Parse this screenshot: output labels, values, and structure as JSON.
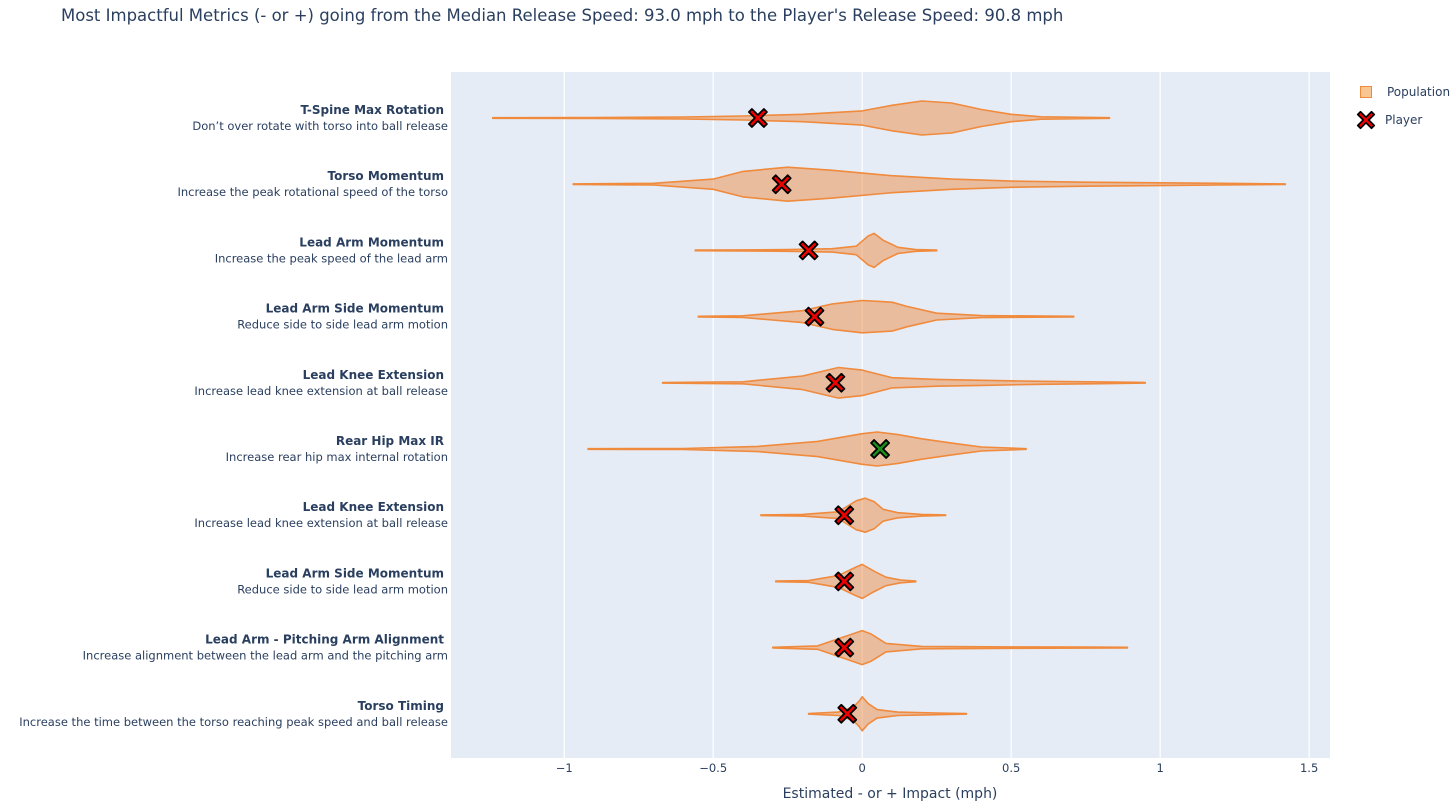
{
  "title": "Most Impactful Metrics (- or +) going from the Median Release Speed: 93.0 mph to the Player's Release Speed: 90.8 mph",
  "legend": {
    "population_label": "Population",
    "player_label": "Player"
  },
  "colors": {
    "plot_bg": "#e5ecf6",
    "violin_fill": "rgba(240,140,70,0.5)",
    "violin_line": "#f08a3c",
    "marker_negative": "#ee0000",
    "marker_positive": "#1a8f1a",
    "marker_outline": "#000000",
    "text": "#2a3f5f"
  },
  "chart_data": {
    "type": "violin",
    "orientation": "horizontal",
    "xlabel": "Estimated - or + Impact (mph)",
    "xlim": [
      -1.38,
      1.57
    ],
    "xticks": [
      -1,
      -0.5,
      0,
      0.5,
      1,
      1.5
    ],
    "xtick_labels": [
      "−1",
      "−0.5",
      "0",
      "0.5",
      "1",
      "1.5"
    ],
    "grid": true,
    "legend_position": "top-right",
    "metrics": [
      {
        "name": "T-Spine Max Rotation",
        "description": "Don’t over rotate with torso into ball release",
        "player": -0.35,
        "min": -1.24,
        "max": 0.83,
        "profile": [
          [
            -1.24,
            0.02
          ],
          [
            -0.9,
            0.03
          ],
          [
            -0.6,
            0.06
          ],
          [
            -0.4,
            0.12
          ],
          [
            -0.2,
            0.22
          ],
          [
            0.0,
            0.42
          ],
          [
            0.1,
            0.75
          ],
          [
            0.2,
            1.0
          ],
          [
            0.3,
            0.88
          ],
          [
            0.4,
            0.5
          ],
          [
            0.5,
            0.22
          ],
          [
            0.6,
            0.07
          ],
          [
            0.83,
            0.02
          ]
        ]
      },
      {
        "name": "Torso Momentum",
        "description": "Increase the peak rotational speed of the torso",
        "player": -0.27,
        "min": -0.97,
        "max": 1.42,
        "profile": [
          [
            -0.97,
            0.02
          ],
          [
            -0.7,
            0.05
          ],
          [
            -0.5,
            0.3
          ],
          [
            -0.4,
            0.75
          ],
          [
            -0.25,
            1.0
          ],
          [
            -0.1,
            0.82
          ],
          [
            0.1,
            0.5
          ],
          [
            0.3,
            0.3
          ],
          [
            0.5,
            0.18
          ],
          [
            0.75,
            0.12
          ],
          [
            1.0,
            0.08
          ],
          [
            1.2,
            0.05
          ],
          [
            1.42,
            0.02
          ]
        ]
      },
      {
        "name": "Lead Arm Momentum",
        "description": "Increase the peak speed of the lead arm",
        "player": -0.18,
        "min": -0.56,
        "max": 0.25,
        "profile": [
          [
            -0.56,
            0.02
          ],
          [
            -0.4,
            0.03
          ],
          [
            -0.25,
            0.05
          ],
          [
            -0.1,
            0.1
          ],
          [
            -0.02,
            0.25
          ],
          [
            0.02,
            0.85
          ],
          [
            0.04,
            1.0
          ],
          [
            0.07,
            0.6
          ],
          [
            0.12,
            0.18
          ],
          [
            0.18,
            0.05
          ],
          [
            0.25,
            0.02
          ]
        ]
      },
      {
        "name": "Lead Arm Side Momentum",
        "description": "Reduce side to side lead arm motion",
        "player": -0.16,
        "min": -0.55,
        "max": 0.71,
        "profile": [
          [
            -0.55,
            0.02
          ],
          [
            -0.4,
            0.05
          ],
          [
            -0.2,
            0.35
          ],
          [
            -0.1,
            0.75
          ],
          [
            0.0,
            0.95
          ],
          [
            0.05,
            0.9
          ],
          [
            0.1,
            0.85
          ],
          [
            0.15,
            0.6
          ],
          [
            0.25,
            0.2
          ],
          [
            0.4,
            0.06
          ],
          [
            0.71,
            0.02
          ]
        ]
      },
      {
        "name": "Lead Knee Extension",
        "description": "Increase lead knee extension at ball release",
        "player": -0.09,
        "min": -0.67,
        "max": 0.95,
        "profile": [
          [
            -0.67,
            0.02
          ],
          [
            -0.4,
            0.06
          ],
          [
            -0.2,
            0.4
          ],
          [
            -0.08,
            0.9
          ],
          [
            0.0,
            0.75
          ],
          [
            0.1,
            0.3
          ],
          [
            0.25,
            0.2
          ],
          [
            0.4,
            0.15
          ],
          [
            0.6,
            0.09
          ],
          [
            0.8,
            0.05
          ],
          [
            0.95,
            0.02
          ]
        ]
      },
      {
        "name": "Rear Hip Max IR",
        "description": "Increase rear hip max internal rotation",
        "player": 0.06,
        "min": -0.92,
        "max": 0.55,
        "profile": [
          [
            -0.92,
            0.02
          ],
          [
            -0.6,
            0.03
          ],
          [
            -0.35,
            0.15
          ],
          [
            -0.15,
            0.45
          ],
          [
            0.0,
            0.9
          ],
          [
            0.05,
            1.0
          ],
          [
            0.12,
            0.85
          ],
          [
            0.2,
            0.6
          ],
          [
            0.3,
            0.35
          ],
          [
            0.4,
            0.12
          ],
          [
            0.55,
            0.02
          ]
        ]
      },
      {
        "name": "Lead Knee Extension",
        "description": "Increase lead knee extension at ball release",
        "player": -0.06,
        "min": -0.34,
        "max": 0.28,
        "profile": [
          [
            -0.34,
            0.02
          ],
          [
            -0.2,
            0.05
          ],
          [
            -0.08,
            0.2
          ],
          [
            -0.02,
            0.85
          ],
          [
            0.01,
            1.0
          ],
          [
            0.04,
            0.8
          ],
          [
            0.07,
            0.35
          ],
          [
            0.12,
            0.15
          ],
          [
            0.2,
            0.05
          ],
          [
            0.28,
            0.02
          ]
        ]
      },
      {
        "name": "Lead Arm Side Momentum",
        "description": "Reduce side to side lead arm motion",
        "player": -0.06,
        "min": -0.29,
        "max": 0.18,
        "profile": [
          [
            -0.29,
            0.02
          ],
          [
            -0.18,
            0.05
          ],
          [
            -0.08,
            0.35
          ],
          [
            -0.02,
            0.85
          ],
          [
            0.0,
            1.0
          ],
          [
            0.04,
            0.6
          ],
          [
            0.08,
            0.25
          ],
          [
            0.13,
            0.08
          ],
          [
            0.18,
            0.02
          ]
        ]
      },
      {
        "name": "Lead Arm - Pitching Arm Alignment",
        "description": "Increase alignment between the lead arm and the pitching arm",
        "player": -0.06,
        "min": -0.3,
        "max": 0.89,
        "profile": [
          [
            -0.3,
            0.02
          ],
          [
            -0.15,
            0.1
          ],
          [
            -0.05,
            0.7
          ],
          [
            0.0,
            1.0
          ],
          [
            0.03,
            0.8
          ],
          [
            0.08,
            0.25
          ],
          [
            0.2,
            0.07
          ],
          [
            0.5,
            0.04
          ],
          [
            0.75,
            0.03
          ],
          [
            0.89,
            0.02
          ]
        ]
      },
      {
        "name": "Torso Timing",
        "description": "Increase the time between the torso reaching peak speed and ball release",
        "player": -0.05,
        "min": -0.18,
        "max": 0.35,
        "profile": [
          [
            -0.18,
            0.02
          ],
          [
            -0.08,
            0.1
          ],
          [
            -0.03,
            0.4
          ],
          [
            -0.01,
            0.75
          ],
          [
            0.0,
            1.0
          ],
          [
            0.02,
            0.6
          ],
          [
            0.05,
            0.25
          ],
          [
            0.12,
            0.1
          ],
          [
            0.25,
            0.05
          ],
          [
            0.35,
            0.02
          ]
        ]
      }
    ]
  }
}
